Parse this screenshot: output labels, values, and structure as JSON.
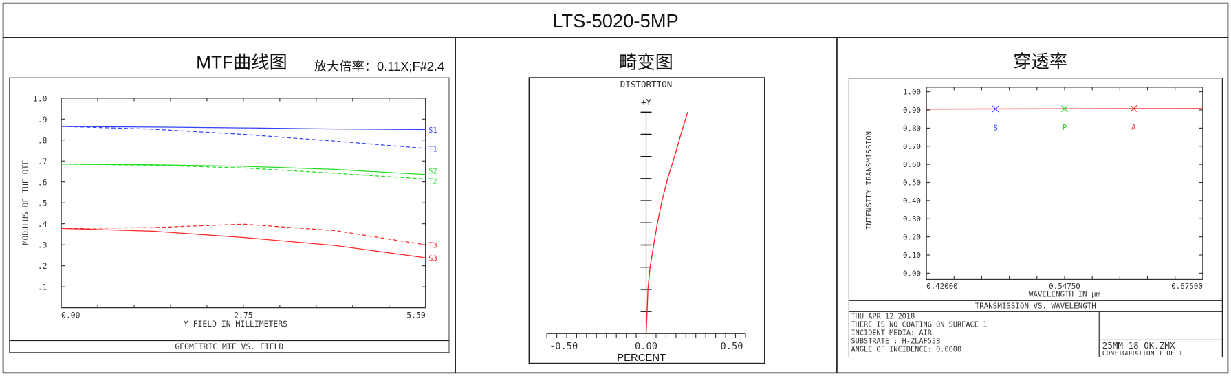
{
  "header": {
    "title": "LTS-5020-5MP"
  },
  "colors": {
    "s1t1": "#3344ff",
    "s2t2": "#22dd22",
    "s3t3": "#ff2222",
    "frame": "#222222"
  },
  "mtf_panel": {
    "title": "MTF曲线图",
    "subtitle": "放大倍率：0.11X;F#2.4",
    "footer": "GEOMETRIC MTF VS. FIELD"
  },
  "distortion_panel": {
    "title": "畸变图"
  },
  "transmission_panel": {
    "title": "穿透率",
    "footer": "TRANSMISSION VS. WAVELENGTH",
    "info_lines": [
      "THU APR 12 2018",
      "THERE IS NO COATING ON SURFACE 1",
      "INCIDENT MEDIA: AIR",
      "SUBSTRATE     : H-ZLAF53B",
      "ANGLE OF INCIDENCE: 0.0000"
    ],
    "file_name": "25MM-18-OK.ZMX",
    "configuration": "CONFIGURATION 1 OF 1"
  },
  "chart_data": [
    {
      "type": "line",
      "title": "GEOMETRIC MTF VS. FIELD",
      "xlabel": "Y FIELD IN MILLIMETERS",
      "ylabel": "MODULUS OF THE OTF",
      "xlim": [
        0,
        5.5
      ],
      "ylim": [
        0,
        1.0
      ],
      "xticks": [
        "0.00",
        "2.75",
        "5.50"
      ],
      "yticks": [
        ".1",
        ".2",
        ".3",
        ".4",
        ".5",
        ".6",
        ".7",
        ".8",
        ".9",
        "1.0"
      ],
      "x": [
        0,
        1.375,
        2.75,
        4.125,
        5.5
      ],
      "series": [
        {
          "name": "S1",
          "style": "solid",
          "color": "#3344ff",
          "values": [
            0.865,
            0.862,
            0.858,
            0.853,
            0.85
          ]
        },
        {
          "name": "T1",
          "style": "dashed",
          "color": "#3344ff",
          "values": [
            0.865,
            0.852,
            0.827,
            0.795,
            0.76
          ]
        },
        {
          "name": "S2",
          "style": "solid",
          "color": "#22dd22",
          "values": [
            0.685,
            0.682,
            0.675,
            0.66,
            0.636
          ]
        },
        {
          "name": "T2",
          "style": "dashed",
          "color": "#22dd22",
          "values": [
            0.685,
            0.68,
            0.667,
            0.642,
            0.614
          ]
        },
        {
          "name": "S3",
          "style": "solid",
          "color": "#ff2222",
          "values": [
            0.378,
            0.365,
            0.335,
            0.297,
            0.238
          ]
        },
        {
          "name": "T3",
          "style": "dashed",
          "color": "#ff2222",
          "values": [
            0.378,
            0.382,
            0.398,
            0.368,
            0.3
          ]
        }
      ]
    },
    {
      "type": "line",
      "title": "DISTORTION",
      "xlabel": "PERCENT",
      "ylabel": "+Y",
      "xlim": [
        -0.5,
        0.5
      ],
      "ylim": [
        0,
        1
      ],
      "xticks": [
        "-0.50",
        "0.00",
        "0.50"
      ],
      "x": [
        0,
        0.005,
        0.009,
        0.02,
        0.038,
        0.057,
        0.08,
        0.108,
        0.143,
        0.175,
        0.209
      ],
      "y": [
        0,
        0.1,
        0.2,
        0.3,
        0.4,
        0.5,
        0.6,
        0.7,
        0.8,
        0.9,
        1.0
      ],
      "color": "#ff2222"
    },
    {
      "type": "line",
      "title": "TRANSMISSION VS. WAVELENGTH",
      "xlabel": "WAVELENGTH IN µm",
      "ylabel": "INTENSITY TRANSMISSION",
      "xlim": [
        0.42,
        0.675
      ],
      "ylim": [
        0,
        1.0
      ],
      "xticks": [
        "0.42000",
        "0.54750",
        "0.67500"
      ],
      "yticks": [
        "0.00",
        "0.10",
        "0.20",
        "0.30",
        "0.40",
        "0.50",
        "0.60",
        "0.70",
        "0.80",
        "0.90",
        "1.00"
      ],
      "x": [
        0.42,
        0.675
      ],
      "values": [
        0.905,
        0.908
      ],
      "color": "#ff2222",
      "markers": [
        {
          "name": "S",
          "x": 0.4838,
          "value": 0.906,
          "color": "#3344ff"
        },
        {
          "name": "P",
          "x": 0.5475,
          "value": 0.907,
          "color": "#22dd22"
        },
        {
          "name": "A",
          "x": 0.6113,
          "value": 0.908,
          "color": "#ff2222"
        }
      ]
    }
  ]
}
